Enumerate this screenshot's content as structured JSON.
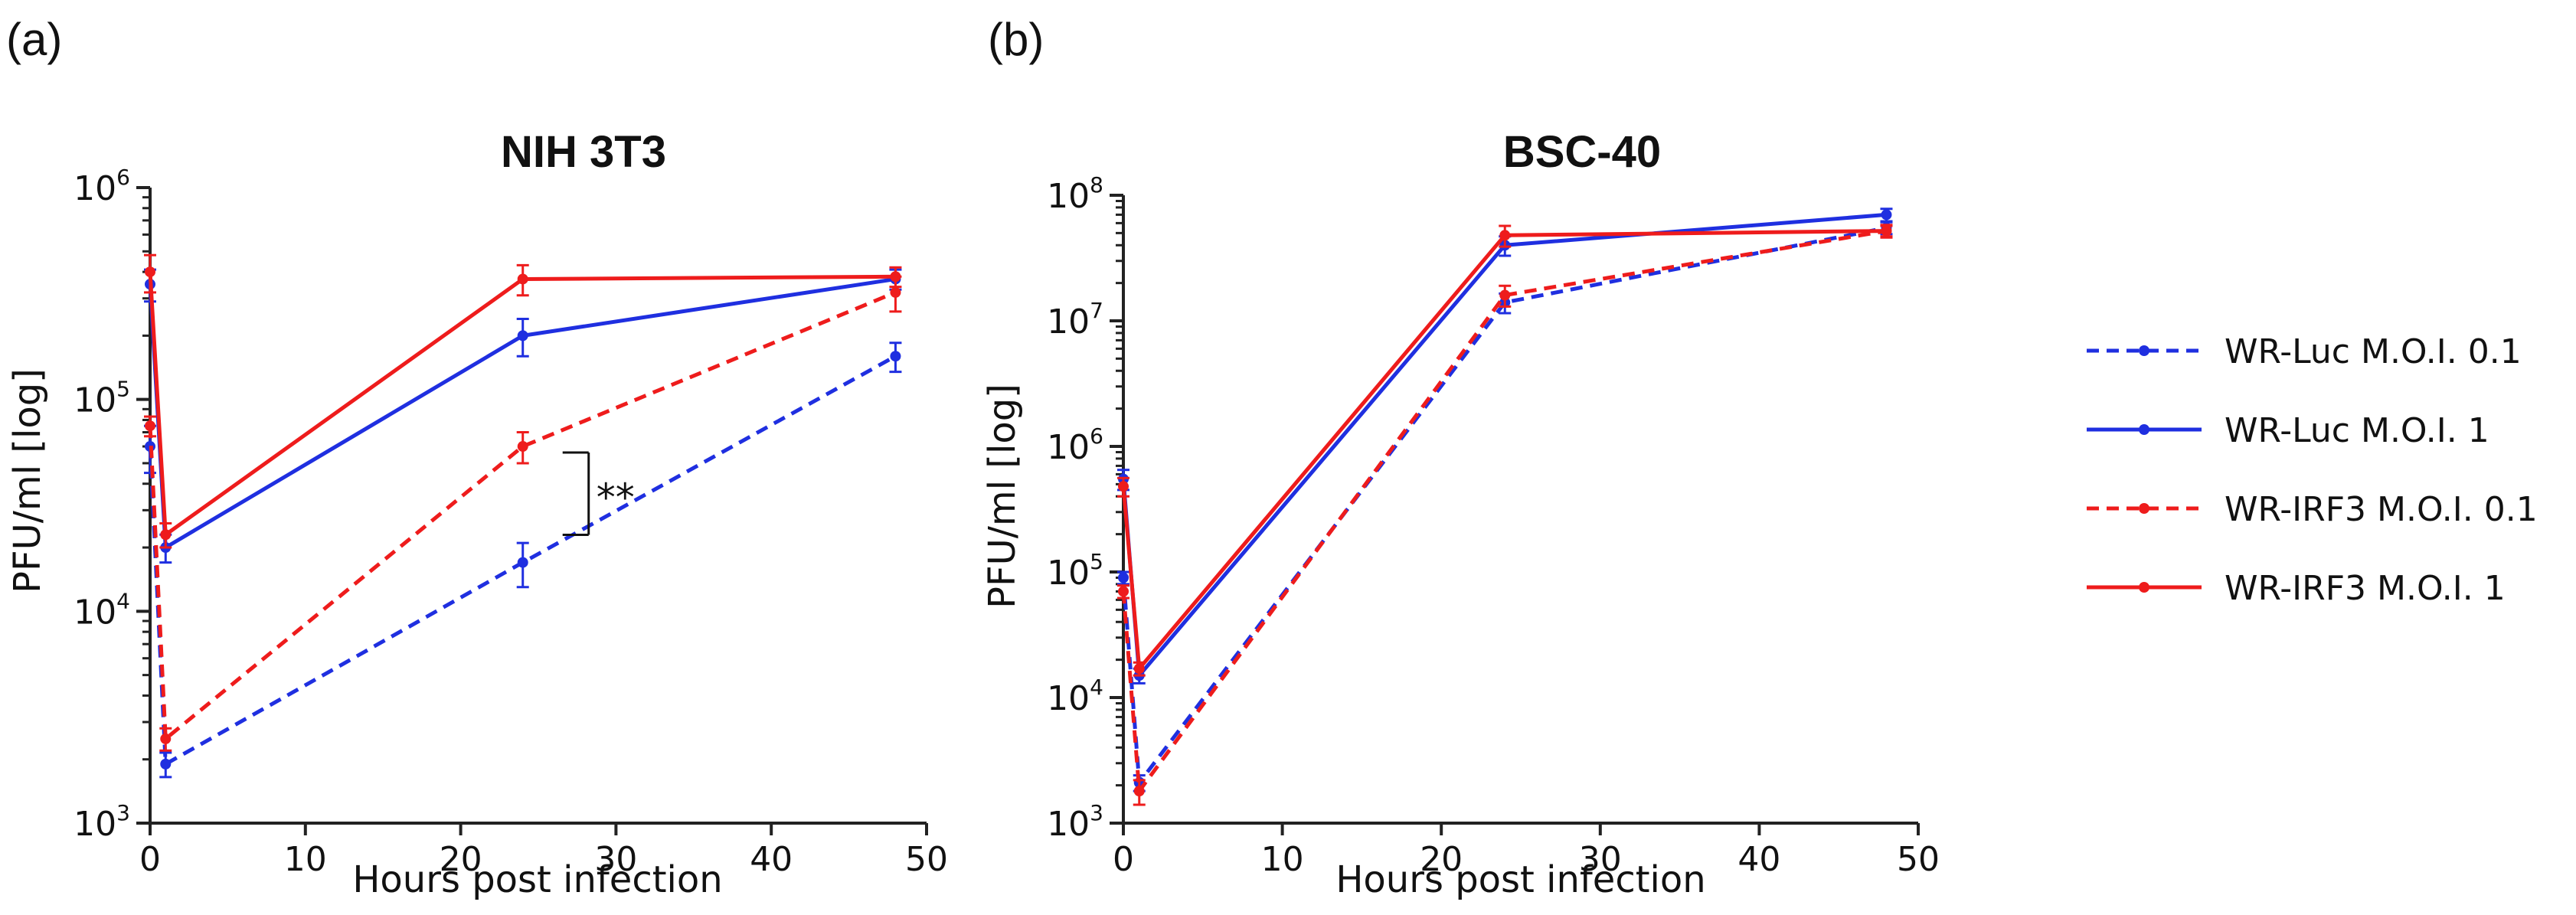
{
  "legend": [
    {
      "label": "WR-Luc M.O.I. 0.1",
      "color": "#1f2fe0",
      "dashed": true
    },
    {
      "label": "WR-Luc M.O.I. 1",
      "color": "#1f2fe0",
      "dashed": false
    },
    {
      "label": "WR-IRF3 M.O.I. 0.1",
      "color": "#ee1c1c",
      "dashed": true
    },
    {
      "label": "WR-IRF3 M.O.I. 1",
      "color": "#ee1c1c",
      "dashed": false
    }
  ],
  "chart_data": [
    {
      "type": "line",
      "panel": "(a)",
      "title": "NIH 3T3",
      "xlabel": "Hours post infection",
      "ylabel": "PFU/ml [log]",
      "xlim": [
        0,
        50
      ],
      "xticks": [
        0,
        10,
        20,
        30,
        40,
        50
      ],
      "yscale": "log",
      "ylim": [
        1000,
        1000000
      ],
      "yticks_exp": [
        3,
        4,
        5,
        6
      ],
      "annotation": "**",
      "series": [
        {
          "name": "WR-Luc M.O.I. 0.1",
          "x": [
            0,
            1,
            24,
            48
          ],
          "y": [
            60000,
            1900,
            17000,
            160000
          ],
          "err": [
            [
              15000,
              15000
            ],
            [
              250,
              250
            ],
            [
              4000,
              4000
            ],
            [
              25000,
              25000
            ]
          ]
        },
        {
          "name": "WR-Luc M.O.I. 1",
          "x": [
            0,
            1,
            24,
            48
          ],
          "y": [
            350000,
            20000,
            200000,
            370000
          ],
          "err": [
            [
              60000,
              60000
            ],
            [
              3000,
              3000
            ],
            [
              40000,
              40000
            ],
            [
              40000,
              40000
            ]
          ]
        },
        {
          "name": "WR-IRF3 M.O.I. 0.1",
          "x": [
            0,
            1,
            24,
            48
          ],
          "y": [
            75000,
            2500,
            60000,
            320000
          ],
          "err": [
            [
              8000,
              8000
            ],
            [
              300,
              300
            ],
            [
              10000,
              10000
            ],
            [
              60000,
              60000
            ]
          ]
        },
        {
          "name": "WR-IRF3 M.O.I. 1",
          "x": [
            0,
            1,
            24,
            48
          ],
          "y": [
            400000,
            23000,
            370000,
            380000
          ],
          "err": [
            [
              80000,
              80000
            ],
            [
              3000,
              3000
            ],
            [
              60000,
              60000
            ],
            [
              40000,
              40000
            ]
          ]
        }
      ]
    },
    {
      "type": "line",
      "panel": "(b)",
      "title": "BSC-40",
      "xlabel": "Hours post infection",
      "ylabel": "PFU/ml [log]",
      "xlim": [
        0,
        50
      ],
      "xticks": [
        0,
        10,
        20,
        30,
        40,
        50
      ],
      "yscale": "log",
      "ylim": [
        1000,
        100000000
      ],
      "yticks_exp": [
        3,
        4,
        5,
        6,
        7,
        8
      ],
      "series": [
        {
          "name": "WR-Luc M.O.I. 0.1",
          "x": [
            0,
            1,
            24,
            48
          ],
          "y": [
            90000,
            2100,
            14000000,
            55000000
          ],
          "err": [
            [
              10000,
              10000
            ],
            [
              300,
              300
            ],
            [
              2500000,
              2500000
            ],
            [
              6000000,
              6000000
            ]
          ]
        },
        {
          "name": "WR-Luc M.O.I. 1",
          "x": [
            0,
            1,
            24,
            48
          ],
          "y": [
            550000,
            15000,
            40000000,
            70000000
          ],
          "err": [
            [
              100000,
              100000
            ],
            [
              2000,
              2000
            ],
            [
              7000000,
              7000000
            ],
            [
              8000000,
              8000000
            ]
          ]
        },
        {
          "name": "WR-IRF3 M.O.I. 0.1",
          "x": [
            0,
            1,
            24,
            48
          ],
          "y": [
            70000,
            1800,
            16000000,
            52000000
          ],
          "err": [
            [
              8000,
              8000
            ],
            [
              400,
              400
            ],
            [
              3000000,
              3000000
            ],
            [
              6000000,
              6000000
            ]
          ]
        },
        {
          "name": "WR-IRF3 M.O.I. 1",
          "x": [
            0,
            1,
            24,
            48
          ],
          "y": [
            480000,
            17000,
            48000000,
            52000000
          ],
          "err": [
            [
              80000,
              80000
            ],
            [
              2000,
              2000
            ],
            [
              9000000,
              9000000
            ],
            [
              5000000,
              5000000
            ]
          ]
        }
      ]
    }
  ]
}
